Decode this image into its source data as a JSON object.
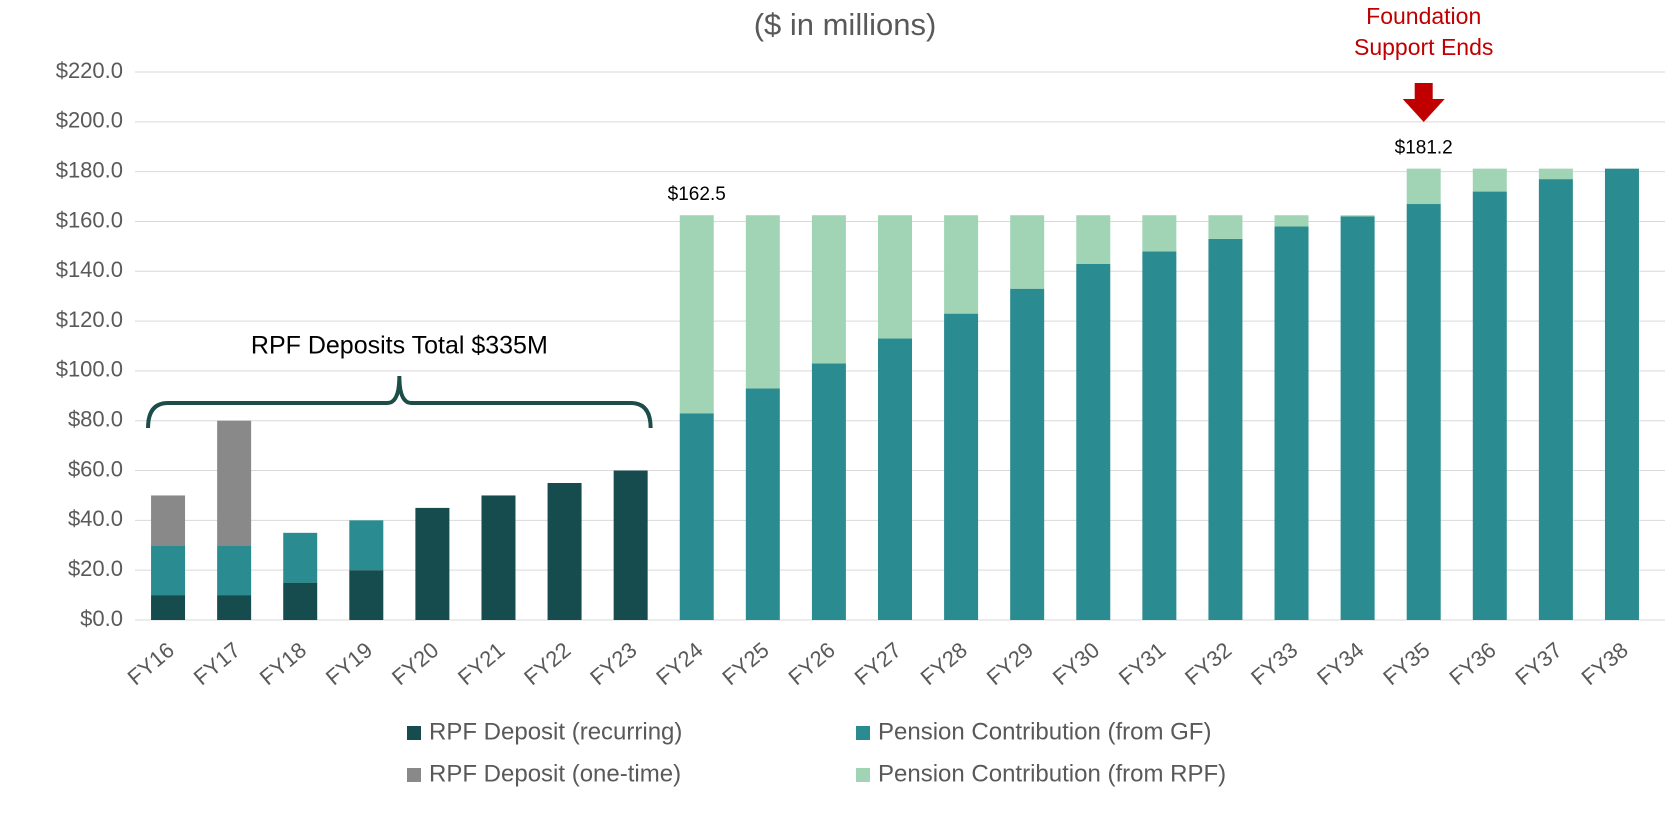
{
  "chart_data": {
    "type": "stacked_bar",
    "subtitle": "($ in millions)",
    "categories": [
      "FY16",
      "FY17",
      "FY18",
      "FY19",
      "FY20",
      "FY21",
      "FY22",
      "FY23",
      "FY24",
      "FY25",
      "FY26",
      "FY27",
      "FY28",
      "FY29",
      "FY30",
      "FY31",
      "FY32",
      "FY33",
      "FY34",
      "FY35",
      "FY36",
      "FY37",
      "FY38"
    ],
    "series": [
      {
        "name": "RPF Deposit (recurring)",
        "color": "#164c4e",
        "values": [
          10,
          10,
          15,
          20,
          45,
          50,
          55,
          60,
          0,
          0,
          0,
          0,
          0,
          0,
          0,
          0,
          0,
          0,
          0,
          0,
          0,
          0,
          0
        ]
      },
      {
        "name": "Pension Contribution (from GF)",
        "color": "#2a8c90",
        "values": [
          20,
          20,
          20,
          20,
          0,
          0,
          0,
          0,
          83,
          93,
          103,
          113,
          123,
          133,
          143,
          148,
          153,
          158,
          162,
          167,
          172,
          177,
          181.2
        ]
      },
      {
        "name": "RPF Deposit (one-time)",
        "color": "#898989",
        "values": [
          20,
          50,
          0,
          0,
          0,
          0,
          0,
          0,
          0,
          0,
          0,
          0,
          0,
          0,
          0,
          0,
          0,
          0,
          0,
          0,
          0,
          0,
          0
        ]
      },
      {
        "name": "Pension Contribution (from RPF)",
        "color": "#a0d4b4",
        "values": [
          0,
          0,
          0,
          0,
          0,
          0,
          0,
          0,
          79.5,
          69.5,
          59.5,
          49.5,
          39.5,
          29.5,
          19.5,
          14.5,
          9.5,
          4.5,
          0.5,
          14.2,
          9.2,
          4.2,
          0
        ]
      }
    ],
    "ylim": [
      0,
      220
    ],
    "yticks": [
      {
        "value": 0,
        "label": "$0.0"
      },
      {
        "value": 20,
        "label": "$20.0"
      },
      {
        "value": 40,
        "label": "$40.0"
      },
      {
        "value": 60,
        "label": "$60.0"
      },
      {
        "value": 80,
        "label": "$80.0"
      },
      {
        "value": 100,
        "label": "$100.0"
      },
      {
        "value": 120,
        "label": "$120.0"
      },
      {
        "value": 140,
        "label": "$140.0"
      },
      {
        "value": 160,
        "label": "$160.0"
      },
      {
        "value": 180,
        "label": "$180.0"
      },
      {
        "value": 200,
        "label": "$200.0"
      },
      {
        "value": 220,
        "label": "$220.0"
      }
    ],
    "grid": true,
    "annotations": [
      "$162.5",
      "$181.2",
      "RPF Deposits Total $335M",
      "Foundation Support Ends"
    ]
  }
}
